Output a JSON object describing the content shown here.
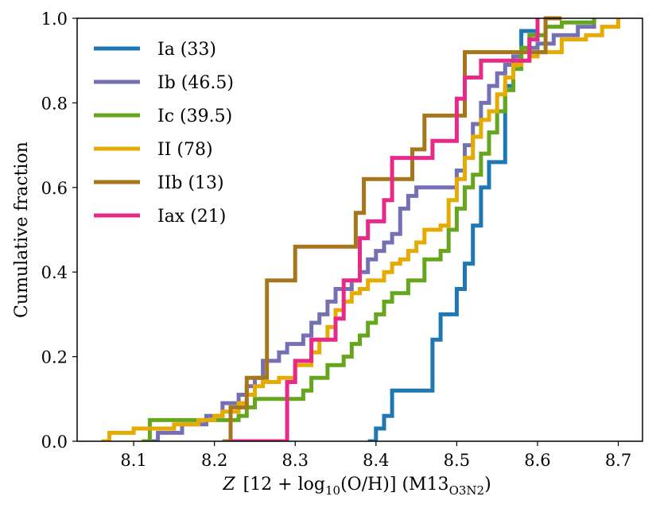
{
  "chart_data": {
    "type": "line",
    "step": "post",
    "xlabel": "Z [12 + log10(O/H)] (M13 O3N2)",
    "xlabel_parts": {
      "z": "Z",
      "pre": "[12 + log",
      "sub10": "10",
      "mid": "(O/H)] (M13",
      "subscript": "O3N2",
      "post": ")"
    },
    "ylabel": "Cumulative fraction",
    "xlim": [
      8.03,
      8.73
    ],
    "ylim": [
      0.0,
      1.0
    ],
    "xticks": [
      8.1,
      8.2,
      8.3,
      8.4,
      8.5,
      8.6,
      8.7
    ],
    "xtick_labels": [
      "8.1",
      "8.2",
      "8.3",
      "8.4",
      "8.5",
      "8.6",
      "8.7"
    ],
    "yticks": [
      0.0,
      0.2,
      0.4,
      0.6,
      0.8,
      1.0
    ],
    "ytick_labels": [
      "0.0",
      "0.2",
      "0.4",
      "0.6",
      "0.8",
      "1.0"
    ],
    "legend_position": "top-left",
    "grid": false,
    "series": [
      {
        "name": "Ia (33)",
        "color": "#1f77b4",
        "x": [
          8.39,
          8.4,
          8.41,
          8.42,
          8.47,
          8.48,
          8.5,
          8.51,
          8.52,
          8.53,
          8.54,
          8.56,
          8.57,
          8.58,
          8.59,
          8.6
        ],
        "y": [
          0.0,
          0.03,
          0.06,
          0.12,
          0.24,
          0.3,
          0.36,
          0.42,
          0.51,
          0.6,
          0.66,
          0.84,
          0.9,
          0.97,
          0.97,
          1.0
        ]
      },
      {
        "name": "Ib (46.5)",
        "color": "#7570b3",
        "x": [
          8.12,
          8.13,
          8.16,
          8.19,
          8.21,
          8.23,
          8.24,
          8.25,
          8.26,
          8.28,
          8.29,
          8.31,
          8.32,
          8.33,
          8.34,
          8.35,
          8.37,
          8.38,
          8.39,
          8.4,
          8.41,
          8.42,
          8.43,
          8.44,
          8.45,
          8.5,
          8.51,
          8.52,
          8.53,
          8.54,
          8.55,
          8.56,
          8.57,
          8.58,
          8.6,
          8.62,
          8.65,
          8.67
        ],
        "y": [
          0.0,
          0.02,
          0.04,
          0.06,
          0.09,
          0.11,
          0.13,
          0.15,
          0.19,
          0.21,
          0.23,
          0.25,
          0.28,
          0.3,
          0.33,
          0.36,
          0.38,
          0.4,
          0.43,
          0.45,
          0.47,
          0.49,
          0.55,
          0.58,
          0.6,
          0.64,
          0.7,
          0.75,
          0.8,
          0.84,
          0.87,
          0.89,
          0.91,
          0.93,
          0.94,
          0.96,
          0.98,
          1.0
        ]
      },
      {
        "name": "Ic (39.5)",
        "color": "#66a61e",
        "x": [
          8.11,
          8.12,
          8.18,
          8.23,
          8.24,
          8.25,
          8.31,
          8.32,
          8.34,
          8.36,
          8.37,
          8.38,
          8.39,
          8.4,
          8.41,
          8.42,
          8.44,
          8.46,
          8.48,
          8.49,
          8.5,
          8.51,
          8.52,
          8.53,
          8.54,
          8.55,
          8.56,
          8.57,
          8.58,
          8.59,
          8.61,
          8.63,
          8.67
        ],
        "y": [
          0.0,
          0.05,
          0.05,
          0.06,
          0.08,
          0.1,
          0.12,
          0.15,
          0.18,
          0.2,
          0.23,
          0.25,
          0.28,
          0.3,
          0.33,
          0.35,
          0.38,
          0.43,
          0.45,
          0.5,
          0.55,
          0.6,
          0.63,
          0.68,
          0.73,
          0.78,
          0.83,
          0.88,
          0.93,
          0.96,
          0.98,
          0.99,
          1.0
        ]
      },
      {
        "name": "II (78)",
        "color": "#e6ab02",
        "x": [
          8.06,
          8.07,
          8.1,
          8.15,
          8.18,
          8.2,
          8.21,
          8.23,
          8.24,
          8.25,
          8.26,
          8.28,
          8.3,
          8.32,
          8.33,
          8.34,
          8.35,
          8.36,
          8.37,
          8.38,
          8.39,
          8.41,
          8.42,
          8.43,
          8.44,
          8.45,
          8.46,
          8.48,
          8.49,
          8.5,
          8.51,
          8.52,
          8.53,
          8.54,
          8.55,
          8.56,
          8.57,
          8.58,
          8.59,
          8.6,
          8.63,
          8.66,
          8.68,
          8.7
        ],
        "y": [
          0.0,
          0.02,
          0.03,
          0.04,
          0.05,
          0.06,
          0.07,
          0.09,
          0.11,
          0.13,
          0.14,
          0.15,
          0.18,
          0.21,
          0.24,
          0.27,
          0.31,
          0.33,
          0.35,
          0.36,
          0.38,
          0.4,
          0.42,
          0.43,
          0.45,
          0.47,
          0.5,
          0.51,
          0.57,
          0.62,
          0.67,
          0.72,
          0.76,
          0.78,
          0.82,
          0.86,
          0.89,
          0.9,
          0.91,
          0.92,
          0.95,
          0.96,
          0.98,
          1.0
        ]
      },
      {
        "name": "IIb (13)",
        "color": "#a6761d",
        "x": [
          8.21,
          8.22,
          8.23,
          8.24,
          8.265,
          8.3,
          8.375,
          8.385,
          8.4,
          8.445,
          8.46,
          8.47,
          8.51,
          8.61,
          8.63
        ],
        "y": [
          0.0,
          0.08,
          0.08,
          0.15,
          0.38,
          0.46,
          0.54,
          0.62,
          0.62,
          0.69,
          0.77,
          0.77,
          0.92,
          1.0,
          1.0
        ]
      },
      {
        "name": "Iax (21)",
        "color": "#e7298a",
        "x": [
          8.22,
          8.29,
          8.3,
          8.32,
          8.35,
          8.36,
          8.38,
          8.39,
          8.41,
          8.42,
          8.44,
          8.47,
          8.5,
          8.51,
          8.53,
          8.54,
          8.59,
          8.6
        ],
        "y": [
          0.0,
          0.14,
          0.19,
          0.24,
          0.29,
          0.38,
          0.48,
          0.52,
          0.57,
          0.67,
          0.67,
          0.71,
          0.81,
          0.86,
          0.9,
          0.9,
          0.95,
          1.0
        ]
      }
    ]
  }
}
